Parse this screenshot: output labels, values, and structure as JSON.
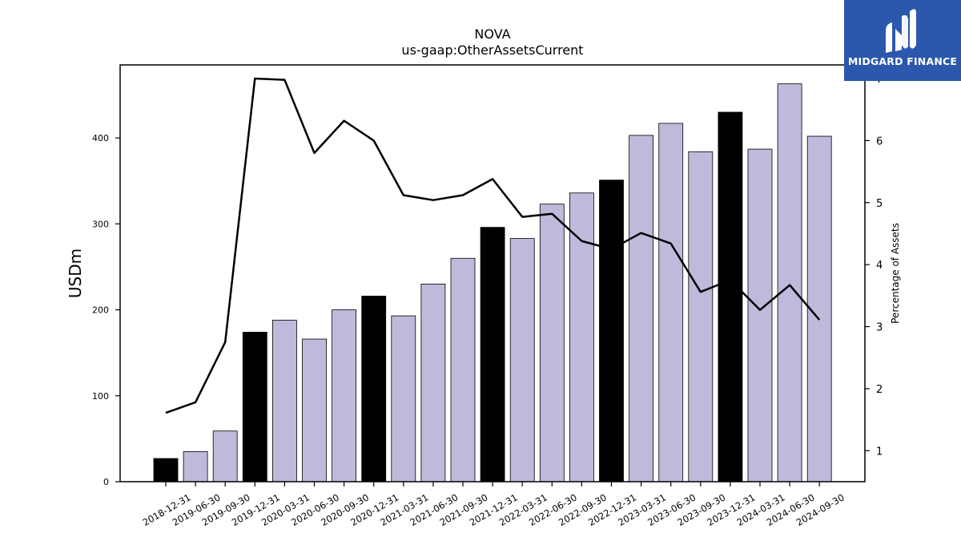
{
  "title": "NOVA",
  "subtitle": "us-gaap:OtherAssetsCurrent",
  "brand": {
    "name": "MIDGARD FINANCE",
    "color": "#2b58ad"
  },
  "chart_data": {
    "type": "bar",
    "title": "NOVA",
    "subtitle": "us-gaap:OtherAssetsCurrent",
    "ylabel": "USDm",
    "y2label": "Percentage of Assets",
    "ylim": [
      0,
      485
    ],
    "y2lim": [
      0.5,
      7.22
    ],
    "yticks": [
      "0",
      "100",
      "200",
      "300",
      "400"
    ],
    "y2ticks": [
      "1",
      "2",
      "3",
      "4",
      "5",
      "6",
      "7"
    ],
    "categories": [
      "2018-12-31",
      "2019-06-30",
      "2019-09-30",
      "2019-12-31",
      "2020-03-31",
      "2020-06-30",
      "2020-09-30",
      "2020-12-31",
      "2021-03-31",
      "2021-06-30",
      "2021-09-30",
      "2021-12-31",
      "2022-03-31",
      "2022-06-30",
      "2022-09-30",
      "2022-12-31",
      "2023-03-31",
      "2023-06-30",
      "2023-09-30",
      "2023-12-31",
      "2024-03-31",
      "2024-06-30",
      "2024-09-30"
    ],
    "series": [
      {
        "type": "bar",
        "axis": "left",
        "values": [
          27,
          35,
          59,
          174,
          188,
          166,
          200,
          216,
          193,
          230,
          260,
          296,
          283,
          323,
          336,
          351,
          403,
          417,
          384,
          430,
          387,
          463,
          402
        ],
        "year_end_flags": [
          true,
          false,
          false,
          true,
          false,
          false,
          false,
          true,
          false,
          false,
          false,
          true,
          false,
          false,
          false,
          true,
          false,
          false,
          false,
          true,
          false,
          false,
          false
        ],
        "colors": {
          "year_end": "#000000",
          "quarter": "#bdbadb"
        }
      },
      {
        "type": "line",
        "axis": "right",
        "color": "#000000",
        "values": [
          1.61,
          1.78,
          2.75,
          7.0,
          6.98,
          5.8,
          6.32,
          6.0,
          5.12,
          5.04,
          5.12,
          5.38,
          4.77,
          4.82,
          4.38,
          4.25,
          4.51,
          4.34,
          3.56,
          3.75,
          3.27,
          3.67,
          3.11
        ]
      }
    ],
    "grid": false,
    "legend": "none"
  }
}
